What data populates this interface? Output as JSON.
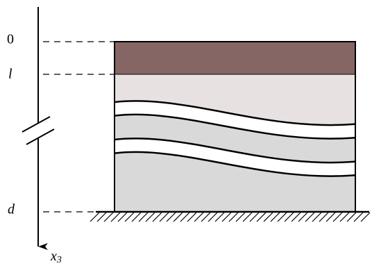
{
  "labels": {
    "top": "0",
    "interface": "l",
    "bottom": "d"
  },
  "axis": {
    "name": "x",
    "subscript": "3"
  }
}
